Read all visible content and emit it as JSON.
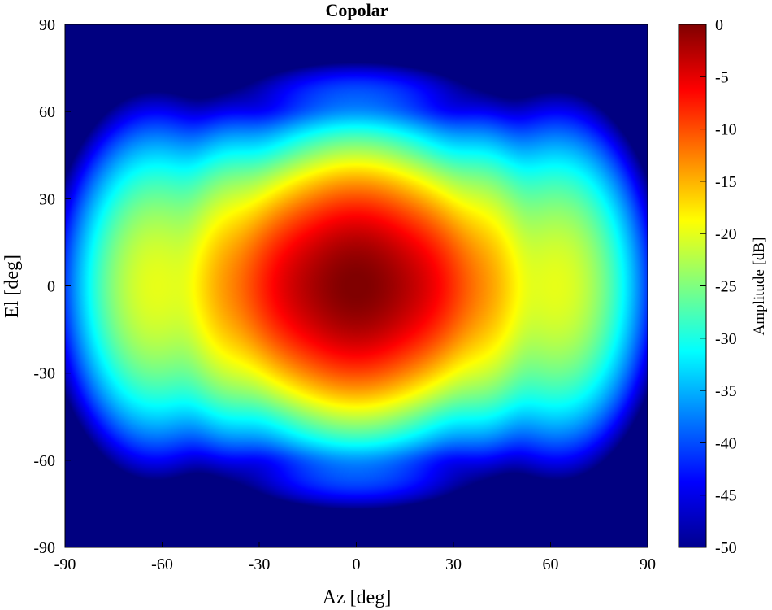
{
  "chart_data": {
    "type": "heatmap",
    "title": "Copolar",
    "xlabel": "Az [deg]",
    "ylabel": "El [deg]",
    "xlim": [
      -90,
      90
    ],
    "ylim": [
      -90,
      90
    ],
    "x_ticks": [
      "-90",
      "-60",
      "-30",
      "0",
      "30",
      "60",
      "90"
    ],
    "y_ticks": [
      "90",
      "60",
      "30",
      "0",
      "-30",
      "-60",
      "-90"
    ],
    "colorbar": {
      "label": "Amplitude [dB]",
      "range": [
        -50,
        0
      ],
      "ticks": [
        "0",
        "-5",
        "-10",
        "-15",
        "-20",
        "-25",
        "-30",
        "-35",
        "-40",
        "-45",
        "-50"
      ],
      "colormap": "jet"
    },
    "lobes": [
      {
        "az": 0,
        "el": 0,
        "peak_db": 0
      },
      {
        "az": -20,
        "el": 0,
        "peak_db": -7
      },
      {
        "az": 20,
        "el": 0,
        "peak_db": -7
      },
      {
        "az": -39,
        "el": 0,
        "peak_db": -15
      },
      {
        "az": 39,
        "el": 0,
        "peak_db": -15
      },
      {
        "az": -62,
        "el": 0,
        "peak_db": -20
      },
      {
        "az": 62,
        "el": 0,
        "peak_db": -20
      },
      {
        "az": 0,
        "el": 30,
        "peak_db": -25
      },
      {
        "az": 0,
        "el": -30,
        "peak_db": -25
      },
      {
        "az": 0,
        "el": 48,
        "peak_db": -33
      },
      {
        "az": 0,
        "el": -48,
        "peak_db": -33
      },
      {
        "az": 0,
        "el": 65,
        "peak_db": -40
      },
      {
        "az": 0,
        "el": -65,
        "peak_db": -40
      }
    ]
  }
}
